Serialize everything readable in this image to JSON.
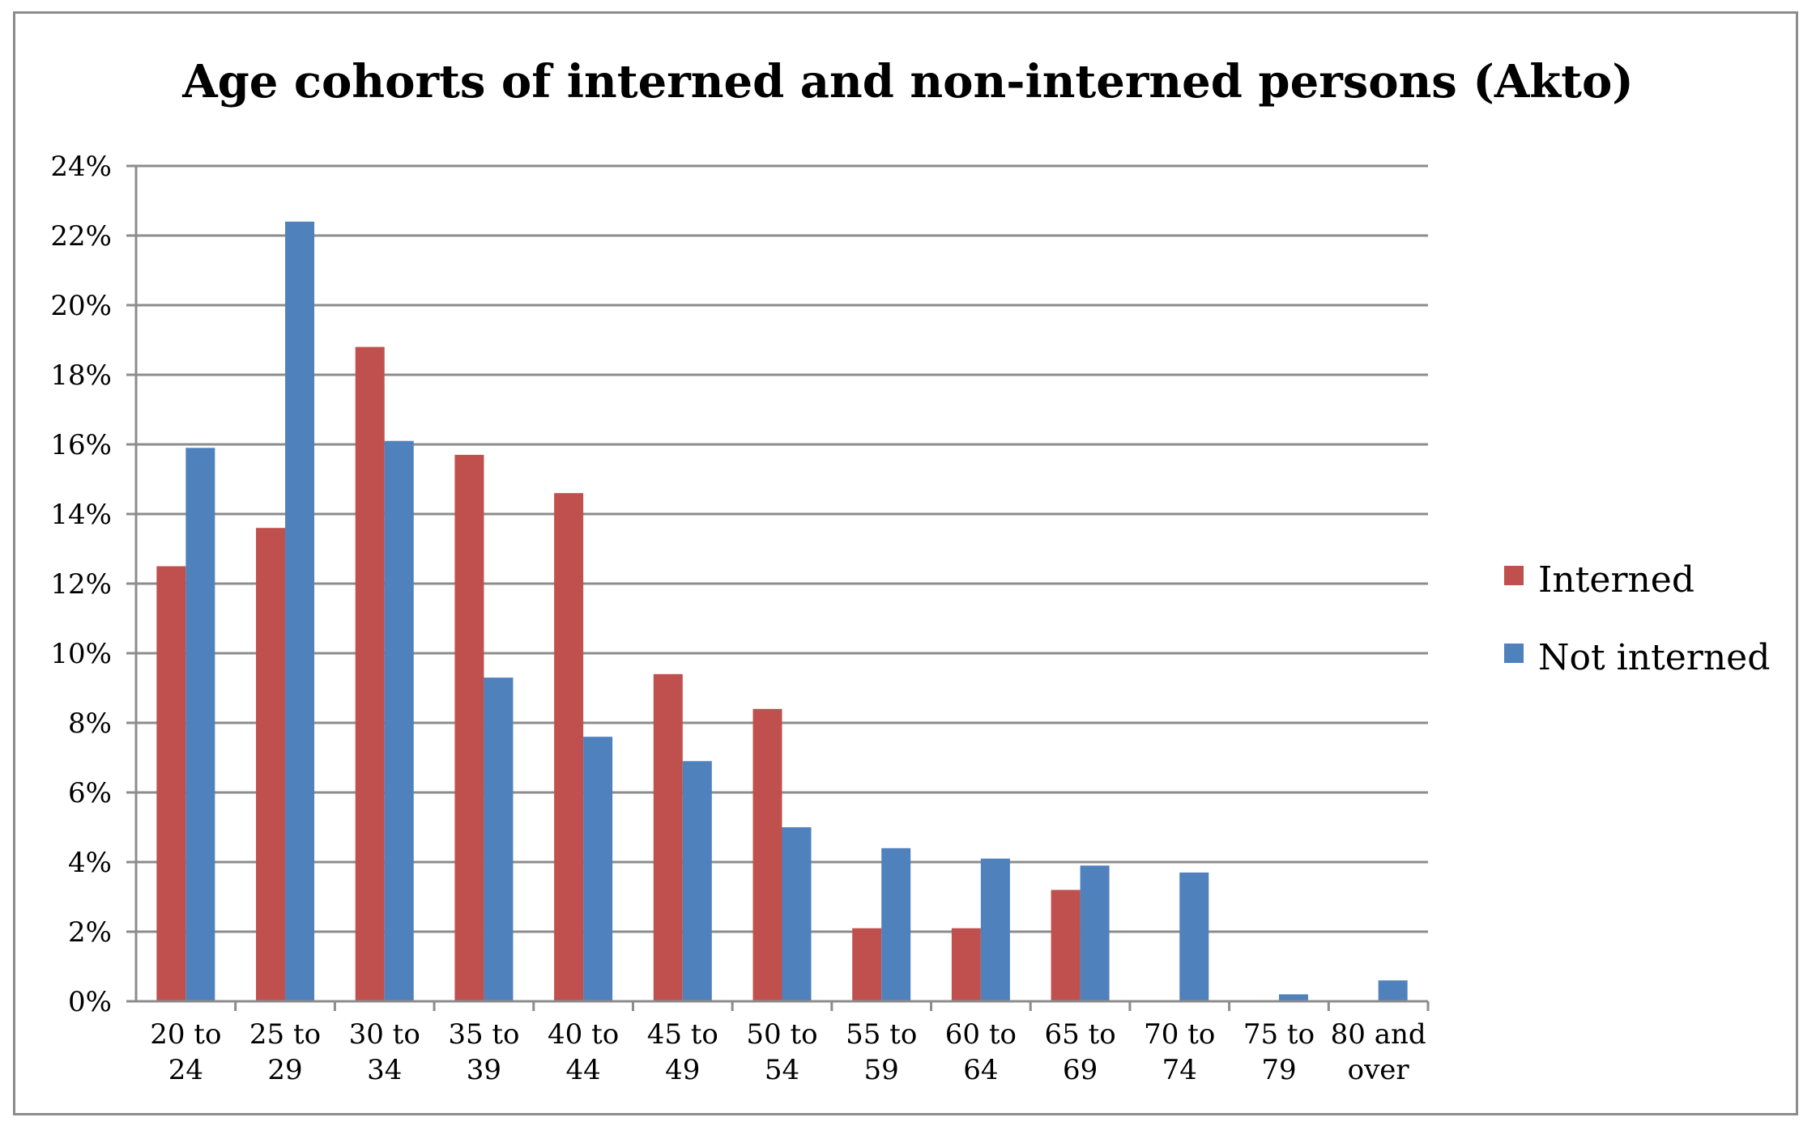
{
  "chart_data": {
    "type": "bar",
    "title": "Age cohorts of interned and non-interned persons (Akto)",
    "xlabel": "",
    "ylabel": "",
    "categories": [
      [
        "20 to",
        "24"
      ],
      [
        "25 to",
        "29"
      ],
      [
        "30 to",
        "34"
      ],
      [
        "35 to",
        "39"
      ],
      [
        "40 to",
        "44"
      ],
      [
        "45 to",
        "49"
      ],
      [
        "50 to",
        "54"
      ],
      [
        "55 to",
        "59"
      ],
      [
        "60 to",
        "64"
      ],
      [
        "65 to",
        "69"
      ],
      [
        "70 to",
        "74"
      ],
      [
        "75 to",
        "79"
      ],
      [
        "80 and",
        "over"
      ]
    ],
    "series": [
      {
        "name": "Interned",
        "color": "#c0504d",
        "values": [
          12.5,
          13.6,
          18.8,
          15.7,
          14.6,
          9.4,
          8.4,
          2.1,
          2.1,
          3.2,
          0,
          0,
          0
        ]
      },
      {
        "name": "Not interned",
        "color": "#4f81bd",
        "values": [
          15.9,
          22.4,
          16.1,
          9.3,
          7.6,
          6.9,
          5.0,
          4.4,
          4.1,
          3.9,
          3.7,
          0.2,
          0.6
        ]
      }
    ],
    "ylim": [
      0,
      24
    ],
    "yticks": [
      0,
      2,
      4,
      6,
      8,
      10,
      12,
      14,
      16,
      18,
      20,
      22,
      24
    ],
    "ytick_labels": [
      "0%",
      "2%",
      "4%",
      "6%",
      "8%",
      "10%",
      "12%",
      "14%",
      "16%",
      "18%",
      "20%",
      "22%",
      "24%"
    ],
    "grid": true,
    "legend_position": "right"
  }
}
